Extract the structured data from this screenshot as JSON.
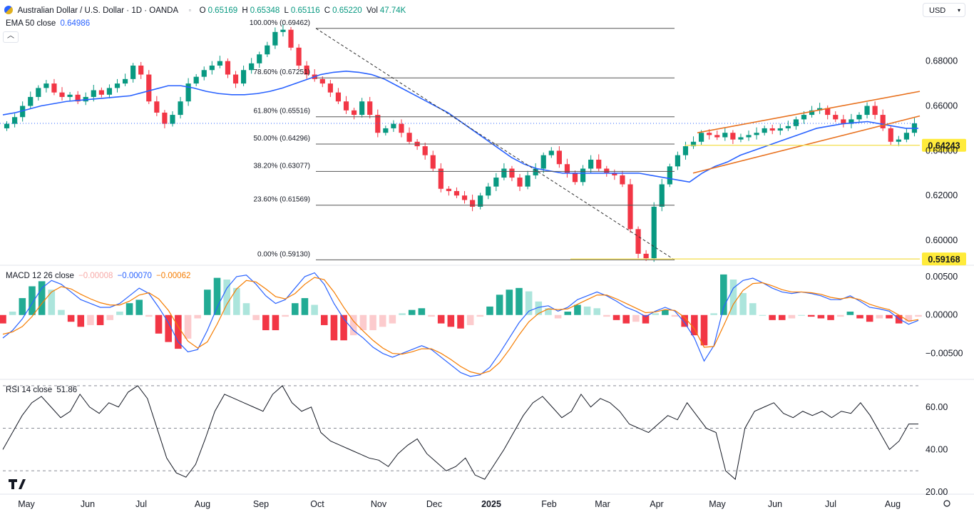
{
  "header": {
    "title": "Australian Dollar / U.S. Dollar · 1D · OANDA",
    "o_label": "O",
    "o_value": "0.65169",
    "h_label": "H",
    "h_value": "0.65348",
    "l_label": "L",
    "l_value": "0.65116",
    "c_label": "C",
    "c_value": "0.65220",
    "vol_label": "Vol",
    "vol_value": "47.74K",
    "ema_label": "EMA 50 close",
    "ema_value": "0.64986",
    "currency": "USD"
  },
  "macd_header": {
    "label": "MACD 12 26 close",
    "hist": "−0.00008",
    "macd": "−0.00070",
    "signal": "−0.00062"
  },
  "rsi_header": {
    "label": "RSI 14 close",
    "value": "51.86"
  },
  "colors": {
    "up": "#089981",
    "down": "#f23645",
    "ema": "#2962ff",
    "signal": "#f57c00",
    "channel": "#e8711e",
    "support": "#f5e15a",
    "label_bg": "#ffeb3b"
  },
  "chart_data": [
    {
      "type": "candlestick",
      "symbol": "AUDUSD",
      "timeframe": "1D",
      "ylim": [
        0.5895,
        0.699
      ],
      "yticks": [
        0.6,
        0.62,
        0.64,
        0.66,
        0.68
      ],
      "ytick_labels": [
        "0.60000",
        "0.62000",
        "0.64000",
        "0.66000",
        "0.68000"
      ],
      "x_labels": [
        "May",
        "Jun",
        "Jul",
        "Aug",
        "Sep",
        "Oct",
        "Nov",
        "Dec",
        "2025",
        "Feb",
        "Mar",
        "Apr",
        "May",
        "Jun",
        "Jul",
        "Aug"
      ],
      "close_series": [
        0.652,
        0.655,
        0.66,
        0.664,
        0.668,
        0.67,
        0.666,
        0.664,
        0.665,
        0.662,
        0.664,
        0.667,
        0.665,
        0.668,
        0.67,
        0.672,
        0.678,
        0.674,
        0.662,
        0.657,
        0.652,
        0.656,
        0.662,
        0.67,
        0.673,
        0.676,
        0.678,
        0.68,
        0.674,
        0.67,
        0.676,
        0.679,
        0.683,
        0.687,
        0.693,
        0.694,
        0.686,
        0.678,
        0.674,
        0.672,
        0.67,
        0.666,
        0.662,
        0.658,
        0.656,
        0.662,
        0.656,
        0.648,
        0.65,
        0.652,
        0.648,
        0.644,
        0.642,
        0.638,
        0.632,
        0.623,
        0.622,
        0.62,
        0.618,
        0.615,
        0.62,
        0.624,
        0.628,
        0.632,
        0.628,
        0.624,
        0.629,
        0.632,
        0.638,
        0.64,
        0.634,
        0.63,
        0.626,
        0.632,
        0.636,
        0.632,
        0.63,
        0.629,
        0.625,
        0.605,
        0.594,
        0.592,
        0.615,
        0.625,
        0.633,
        0.638,
        0.642,
        0.644,
        0.648,
        0.647,
        0.646,
        0.648,
        0.645,
        0.646,
        0.647,
        0.648,
        0.65,
        0.649,
        0.65,
        0.651,
        0.654,
        0.656,
        0.658,
        0.659,
        0.656,
        0.654,
        0.652,
        0.654,
        0.656,
        0.66,
        0.656,
        0.65,
        0.644,
        0.645,
        0.648,
        0.6522
      ],
      "ema_series": [
        0.656,
        0.657,
        0.6585,
        0.66,
        0.661,
        0.662,
        0.6625,
        0.663,
        0.6635,
        0.664,
        0.6645,
        0.666,
        0.6675,
        0.669,
        0.669,
        0.668,
        0.6665,
        0.6655,
        0.665,
        0.665,
        0.6655,
        0.6665,
        0.668,
        0.67,
        0.672,
        0.674,
        0.675,
        0.6755,
        0.675,
        0.674,
        0.672,
        0.669,
        0.666,
        0.663,
        0.66,
        0.657,
        0.653,
        0.649,
        0.645,
        0.641,
        0.637,
        0.634,
        0.632,
        0.631,
        0.63,
        0.63,
        0.63,
        0.63,
        0.63,
        0.63,
        0.63,
        0.629,
        0.628,
        0.627,
        0.626,
        0.63,
        0.633,
        0.635,
        0.638,
        0.64,
        0.642,
        0.644,
        0.646,
        0.648,
        0.65,
        0.651,
        0.652,
        0.6525,
        0.653,
        0.652,
        0.651,
        0.65,
        0.65
      ],
      "fibonacci": {
        "levels": [
          {
            "label": "100.00%",
            "value": "(0.69462)",
            "price": 0.69462
          },
          {
            "label": "78.60%",
            "value": "(0.67251)",
            "price": 0.67251
          },
          {
            "label": "61.80%",
            "value": "(0.65516)",
            "price": 0.65516
          },
          {
            "label": "50.00%",
            "value": "(0.64296)",
            "price": 0.64296
          },
          {
            "label": "38.20%",
            "value": "(0.63077)",
            "price": 0.63077
          },
          {
            "label": "23.60%",
            "value": "(0.61569)",
            "price": 0.61569
          },
          {
            "label": "0.00%",
            "value": "(0.59130)",
            "price": 0.5913
          }
        ]
      },
      "price_labels": [
        {
          "text": "0.64243",
          "price": 0.64243
        },
        {
          "text": "0.59168",
          "price": 0.59168
        }
      ],
      "channel": {
        "upper": [
          [
            0.648
          ],
          [
            0.6665
          ]
        ],
        "lower": [
          [
            0.63
          ],
          [
            0.6555
          ]
        ]
      }
    },
    {
      "type": "macd",
      "ylim": [
        -0.0082,
        0.0062
      ],
      "yticks": [
        0.005,
        0.0,
        -0.005
      ],
      "ytick_labels": [
        "0.00500",
        "0.00000",
        "−0.00500"
      ],
      "macd_series": [
        -0.003,
        -0.002,
        -0.0005,
        0.0015,
        0.0035,
        0.0045,
        0.004,
        0.003,
        0.002,
        0.0015,
        0.001,
        0.001,
        0.0015,
        0.0025,
        0.0035,
        0.0028,
        0.001,
        -0.001,
        -0.0035,
        -0.0048,
        -0.0045,
        -0.002,
        0.001,
        0.0035,
        0.005,
        0.0052,
        0.004,
        0.0025,
        0.0015,
        0.002,
        0.0035,
        0.005,
        0.0055,
        0.004,
        0.0015,
        -0.0005,
        -0.002,
        -0.003,
        -0.0042,
        -0.005,
        -0.0055,
        -0.005,
        -0.0045,
        -0.004,
        -0.0045,
        -0.0055,
        -0.0065,
        -0.0075,
        -0.008,
        -0.0078,
        -0.0068,
        -0.005,
        -0.003,
        -0.001,
        0.0005,
        0.001,
        0.0012,
        0.0005,
        0.001,
        0.002,
        0.0025,
        0.003,
        0.0025,
        0.0018,
        0.001,
        0.0005,
        -0.0002,
        0.0005,
        0.001,
        0.0005,
        -0.001,
        -0.003,
        -0.006,
        -0.004,
        0.001,
        0.0035,
        0.0045,
        0.0048,
        0.0042,
        0.0035,
        0.003,
        0.0028,
        0.003,
        0.0028,
        0.0025,
        0.002,
        0.002,
        0.0025,
        0.0018,
        0.001,
        0.0008,
        0.0005,
        -0.0005,
        -0.0012,
        -0.0007
      ],
      "signal_series": [
        -0.0025,
        -0.0022,
        -0.0015,
        -0.0002,
        0.0015,
        0.003,
        0.0037,
        0.0034,
        0.0027,
        0.0021,
        0.0016,
        0.0013,
        0.0013,
        0.0018,
        0.0026,
        0.0029,
        0.0021,
        0.0006,
        -0.0015,
        -0.0034,
        -0.0043,
        -0.0035,
        -0.0012,
        0.0014,
        0.0034,
        0.0045,
        0.0043,
        0.0034,
        0.0024,
        0.0021,
        0.0028,
        0.004,
        0.0049,
        0.0046,
        0.003,
        0.001,
        -0.0008,
        -0.0021,
        -0.0033,
        -0.0043,
        -0.005,
        -0.0051,
        -0.0048,
        -0.0044,
        -0.0044,
        -0.005,
        -0.0058,
        -0.0067,
        -0.0074,
        -0.0077,
        -0.0073,
        -0.0062,
        -0.0045,
        -0.0026,
        -0.0009,
        0.0002,
        0.0008,
        0.0007,
        0.0008,
        0.0014,
        0.002,
        0.0026,
        0.0026,
        0.0021,
        0.0015,
        0.0009,
        0.0003,
        0.0004,
        0.0007,
        0.0006,
        -0.0003,
        -0.0018,
        -0.0042,
        -0.0041,
        -0.0014,
        0.0014,
        0.0032,
        0.0041,
        0.0042,
        0.0038,
        0.0033,
        0.003,
        0.003,
        0.0029,
        0.0027,
        0.0023,
        0.0021,
        0.0023,
        0.002,
        0.0014,
        0.001,
        0.0007,
        0.0,
        -0.0008,
        -0.0006
      ]
    },
    {
      "type": "rsi",
      "ylim": [
        20,
        72
      ],
      "yticks": [
        60,
        40,
        20
      ],
      "ytick_labels": [
        "60.00",
        "40.00",
        "20.00"
      ],
      "bands": [
        70,
        50,
        30
      ],
      "rsi_series": [
        40,
        48,
        56,
        62,
        65,
        60,
        55,
        58,
        66,
        60,
        57,
        62,
        60,
        67,
        70,
        64,
        50,
        36,
        29,
        27,
        33,
        45,
        58,
        66,
        64,
        62,
        60,
        58,
        66,
        70,
        62,
        58,
        60,
        48,
        44,
        42,
        40,
        38,
        36,
        35,
        32,
        38,
        42,
        45,
        38,
        34,
        30,
        32,
        36,
        28,
        26,
        33,
        40,
        48,
        56,
        62,
        65,
        60,
        55,
        58,
        66,
        60,
        64,
        62,
        58,
        52,
        50,
        48,
        52,
        56,
        54,
        62,
        56,
        50,
        48,
        30,
        26,
        50,
        58,
        60,
        62,
        57,
        55,
        58,
        56,
        58,
        55,
        58,
        57,
        62,
        56,
        48,
        40,
        44,
        52,
        52
      ]
    }
  ]
}
